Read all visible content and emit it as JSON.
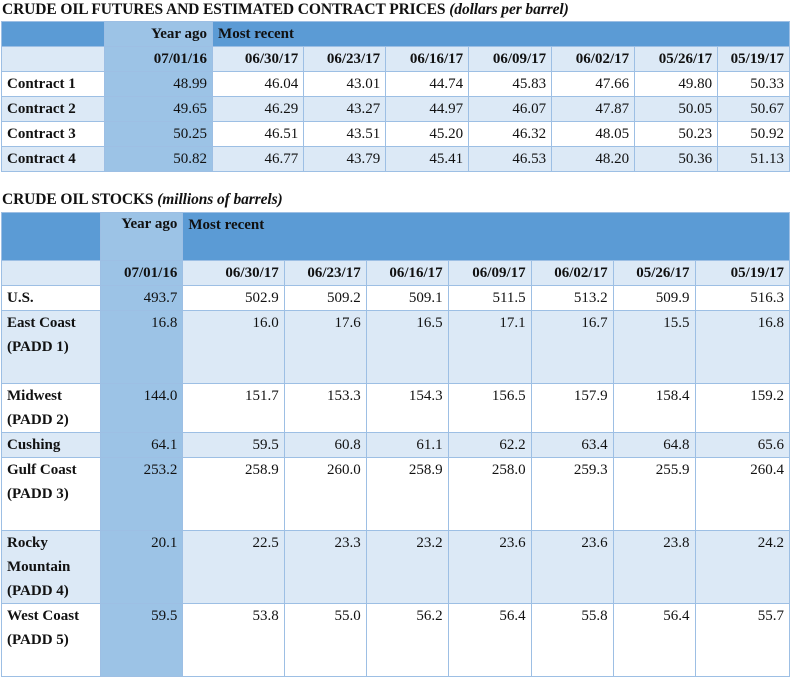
{
  "futures": {
    "title": "CRUDE OIL FUTURES AND ESTIMATED CONTRACT PRICES",
    "subtitle": "(dollars per barrel)",
    "year_ago_label": "Year ago",
    "most_recent_label": "Most recent",
    "dates": [
      "07/01/16",
      "06/30/17",
      "06/23/17",
      "06/16/17",
      "06/09/17",
      "06/02/17",
      "05/26/17",
      "05/19/17"
    ],
    "rows": [
      {
        "label": "Contract 1",
        "values": [
          "48.99",
          "46.04",
          "43.01",
          "44.74",
          "45.83",
          "47.66",
          "49.80",
          "50.33"
        ]
      },
      {
        "label": "Contract 2",
        "values": [
          "49.65",
          "46.29",
          "43.27",
          "44.97",
          "46.07",
          "47.87",
          "50.05",
          "50.67"
        ]
      },
      {
        "label": "Contract 3",
        "values": [
          "50.25",
          "46.51",
          "43.51",
          "45.20",
          "46.32",
          "48.05",
          "50.23",
          "50.92"
        ]
      },
      {
        "label": "Contract 4",
        "values": [
          "50.82",
          "46.77",
          "43.79",
          "45.41",
          "46.53",
          "48.20",
          "50.36",
          "51.13"
        ]
      }
    ]
  },
  "stocks": {
    "title": "CRUDE OIL STOCKS",
    "subtitle": "(millions of barrels)",
    "year_ago_label": "Year ago",
    "most_recent_label": "Most recent",
    "dates": [
      "07/01/16",
      "06/30/17",
      "06/23/17",
      "06/16/17",
      "06/09/17",
      "06/02/17",
      "05/26/17",
      "05/19/17"
    ],
    "rows": [
      {
        "label": "U.S.",
        "values": [
          "493.7",
          "502.9",
          "509.2",
          "509.1",
          "511.5",
          "513.2",
          "509.9",
          "516.3"
        ]
      },
      {
        "label": "East Coast (PADD 1)",
        "values": [
          "16.8",
          "16.0",
          "17.6",
          "16.5",
          "17.1",
          "16.7",
          "15.5",
          "16.8"
        ]
      },
      {
        "label": "Midwest (PADD 2)",
        "values": [
          "144.0",
          "151.7",
          "153.3",
          "154.3",
          "156.5",
          "157.9",
          "158.4",
          "159.2"
        ]
      },
      {
        "label": "Cushing",
        "values": [
          "64.1",
          "59.5",
          "60.8",
          "61.1",
          "62.2",
          "63.4",
          "64.8",
          "65.6"
        ]
      },
      {
        "label": "Gulf Coast (PADD 3)",
        "values": [
          "253.2",
          "258.9",
          "260.0",
          "258.9",
          "258.0",
          "259.3",
          "255.9",
          "260.4"
        ]
      },
      {
        "label": "Rocky Mountain (PADD 4)",
        "values": [
          "20.1",
          "22.5",
          "23.3",
          "23.2",
          "23.6",
          "23.6",
          "23.8",
          "24.2"
        ]
      },
      {
        "label": "West Coast (PADD 5)",
        "values": [
          "59.5",
          "53.8",
          "55.0",
          "56.2",
          "56.4",
          "55.8",
          "56.4",
          "55.7"
        ]
      }
    ]
  }
}
